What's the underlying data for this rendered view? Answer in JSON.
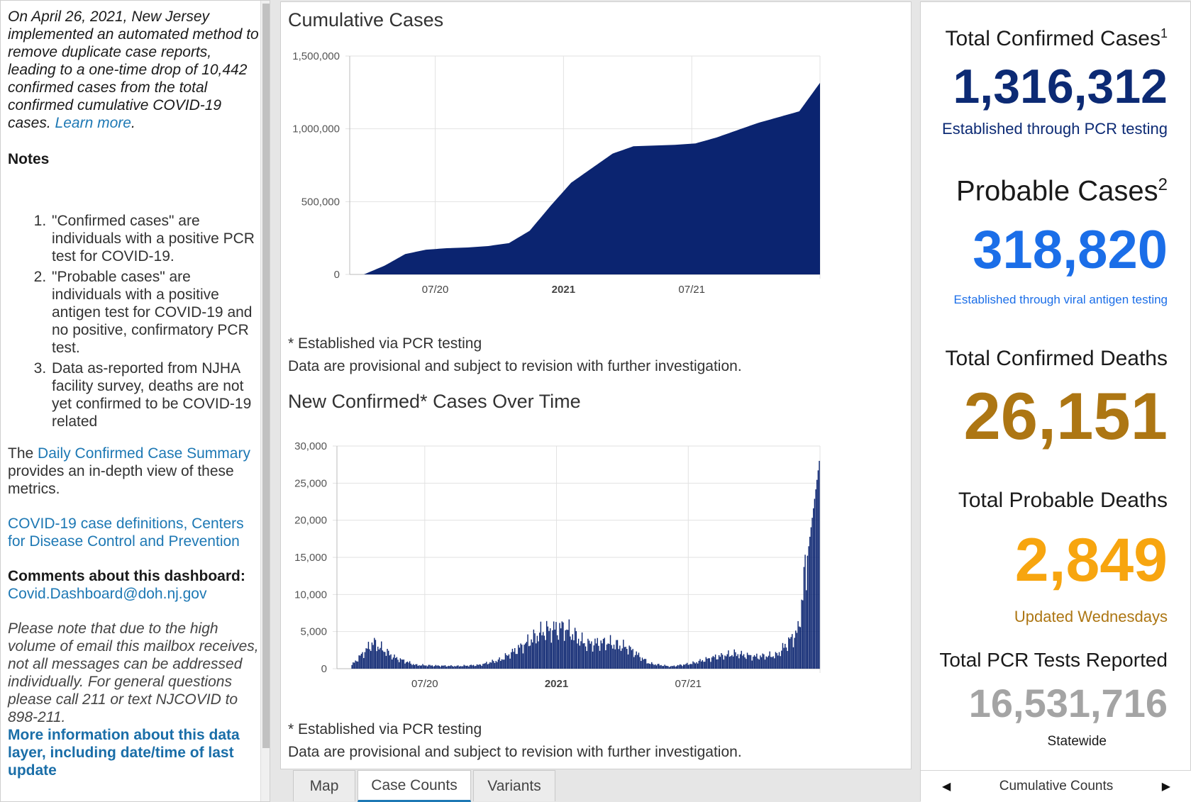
{
  "left": {
    "intro_text": "On April 26, 2021, New Jersey implemented an automated method to remove duplicate case reports, leading to a one-time drop of 10,442 confirmed cases from the total confirmed cumulative COVID-19 cases.",
    "learn_more": "Learn more",
    "period": ".",
    "notes_title": "Notes",
    "notes": [
      "\"Confirmed cases\" are individuals with a positive PCR test for COVID-19.",
      "\"Probable cases\" are individuals with a positive antigen test for COVID-19 and no positive, confirmatory PCR test.",
      "Data as-reported from NJHA facility survey, deaths are not yet confirmed to be COVID-19 related"
    ],
    "summary_prefix": "The",
    "summary_link": "Daily Confirmed Case Summary",
    "summary_suffix": "provides an in-depth view of these metrics.",
    "cdc_link": "COVID-19 case definitions, Centers for Disease Control and Prevention",
    "comments_label": "Comments about this dashboard:",
    "comments_email": "Covid.Dashboard@doh.nj.gov",
    "disclaimer": "Please note that due to the high volume of email this mailbox receives, not all messages can be addressed individually. For general questions please call 211 or text NJCOVID to 898-211.",
    "more_info": "More information about this data layer, including date/time of last update"
  },
  "chart_data": [
    {
      "type": "area",
      "title": "Cumulative Cases",
      "x_tick_labels": [
        "07/20",
        "2021",
        "07/21"
      ],
      "y_tick_labels": [
        "0",
        "500,000",
        "1,000,000",
        "1,500,000"
      ],
      "ylim": [
        0,
        1500000
      ],
      "x": [
        "2020-03",
        "2020-04",
        "2020-05",
        "2020-06",
        "2020-07",
        "2020-08",
        "2020-09",
        "2020-10",
        "2020-11",
        "2020-12",
        "2021-01",
        "2021-02",
        "2021-03",
        "2021-04",
        "2021-05",
        "2021-06",
        "2021-07",
        "2021-08",
        "2021-09",
        "2021-10",
        "2021-11",
        "2021-12",
        "2022-01"
      ],
      "values": [
        0,
        60000,
        140000,
        170000,
        180000,
        185000,
        195000,
        215000,
        300000,
        470000,
        630000,
        730000,
        830000,
        880000,
        885000,
        890000,
        900000,
        940000,
        990000,
        1040000,
        1080000,
        1120000,
        1316312
      ],
      "footnote": "* Established via PCR testing",
      "caveat": "Data are provisional and subject to revision with further investigation."
    },
    {
      "type": "bar",
      "title": "New Confirmed* Cases Over Time",
      "x_tick_labels": [
        "07/20",
        "2021",
        "07/21"
      ],
      "y_tick_labels": [
        "0",
        "5,000",
        "10,000",
        "15,000",
        "20,000",
        "25,000",
        "30,000"
      ],
      "ylim": [
        0,
        30000
      ],
      "x": [
        "2020-03",
        "2020-04",
        "2020-05",
        "2020-06",
        "2020-07",
        "2020-08",
        "2020-09",
        "2020-10",
        "2020-11",
        "2020-12",
        "2021-01",
        "2021-02",
        "2021-03",
        "2021-04",
        "2021-05",
        "2021-06",
        "2021-07",
        "2021-08",
        "2021-09",
        "2021-10",
        "2021-11",
        "2021-12",
        "2022-01"
      ],
      "values": [
        500,
        3500,
        1500,
        500,
        400,
        350,
        500,
        1200,
        3000,
        5000,
        5500,
        3300,
        3500,
        2800,
        700,
        300,
        700,
        1500,
        2000,
        1600,
        1800,
        5000,
        28000
      ],
      "footnote": "* Established via PCR testing",
      "caveat": "Data are provisional and subject to revision with further investigation."
    }
  ],
  "tabs": [
    {
      "label": "Map"
    },
    {
      "label": "Case Counts"
    },
    {
      "label": "Variants"
    }
  ],
  "stats": {
    "confirmed_label": "Total Confirmed Cases",
    "confirmed_sup": "1",
    "confirmed_value": "1,316,312",
    "confirmed_sub": "Established through PCR testing",
    "probable_label": "Probable Cases",
    "probable_sup": "2",
    "probable_value": "318,820",
    "probable_sub": "Established through viral antigen testing",
    "deaths_label": "Total Confirmed Deaths",
    "deaths_value": "26,151",
    "prob_deaths_label": "Total Probable Deaths",
    "prob_deaths_value": "2,849",
    "prob_deaths_sub": "Updated Wednesdays",
    "tests_label": "Total PCR Tests Reported",
    "tests_value": "16,531,716",
    "tests_sub": "Statewide"
  },
  "pager": {
    "label": "Cumulative Counts"
  },
  "colors": {
    "navy": "#0c2a74",
    "blue": "#1b6ee8",
    "gold": "#ad7613",
    "orange": "#f7a50f",
    "gray": "#a4a4a4",
    "link": "#1d78b4",
    "area": "#0b2470"
  }
}
